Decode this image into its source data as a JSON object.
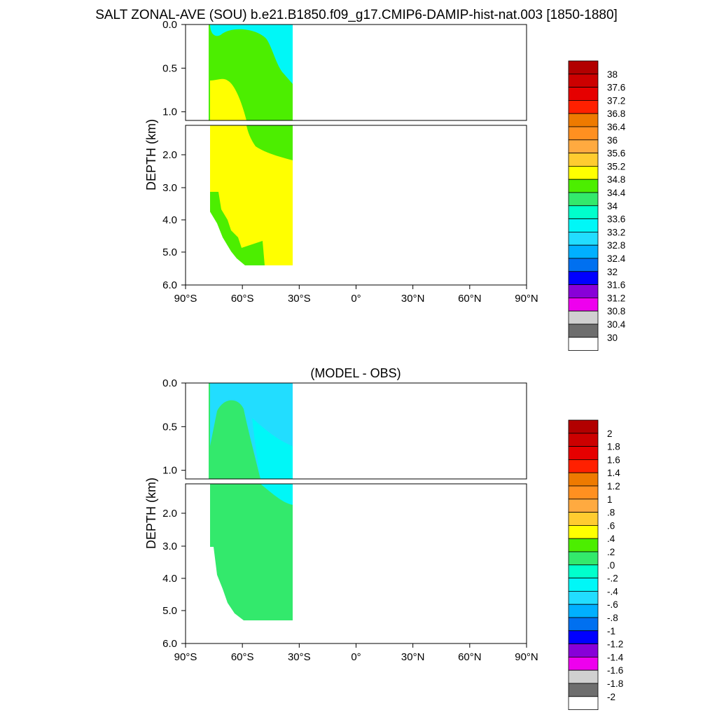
{
  "title": "SALT ZONAL-AVE (SOU) b.e21.B1850.f09_g17.CMIP6-DAMIP-hist-nat.003 [1850-1880]",
  "chart_data": [
    {
      "type": "heatmap",
      "title": "",
      "ylabel": "DEPTH (km)",
      "xlabel": "",
      "x_ticks": [
        "90°S",
        "60°S",
        "30°S",
        "0°",
        "30°N",
        "60°N",
        "90°N"
      ],
      "y_ticks_upper": [
        "0.0",
        "0.5",
        "1.0"
      ],
      "y_ticks_lower": [
        "2.0",
        "3.0",
        "4.0",
        "5.0",
        "6.0"
      ],
      "colorbar_labels": [
        "38",
        "37.6",
        "37.2",
        "36.8",
        "36.4",
        "36",
        "35.6",
        "35.2",
        "34.8",
        "34.4",
        "34",
        "33.6",
        "33.2",
        "32.8",
        "32.4",
        "32",
        "31.6",
        "31.2",
        "30.8",
        "30.4",
        "30"
      ],
      "colors": [
        "#b20000",
        "#cc0000",
        "#e60000",
        "#ff2000",
        "#ee7a00",
        "#ff9020",
        "#ffaa40",
        "#ffcc30",
        "#ffff00",
        "#4cee00",
        "#33e96c",
        "#00ffcc",
        "#00f7f7",
        "#22ddff",
        "#00b0ff",
        "#0070f0",
        "#0000ff",
        "#8800d8",
        "#ee00ee",
        "#d0d0d0",
        "#6e6e6e",
        "#ffffff"
      ],
      "fill_colors": {
        "upper": "#ffff00",
        "mid": "#4cee00",
        "top": "#00f7f7",
        "bottom_patch": "#4cee00"
      }
    },
    {
      "type": "heatmap",
      "title": "(MODEL - OBS)",
      "ylabel": "DEPTH (km)",
      "xlabel": "",
      "x_ticks": [
        "90°S",
        "60°S",
        "30°S",
        "0°",
        "30°N",
        "60°N",
        "90°N"
      ],
      "y_ticks_upper": [
        "0.0",
        "0.5",
        "1.0"
      ],
      "y_ticks_lower": [
        "2.0",
        "3.0",
        "4.0",
        "5.0",
        "6.0"
      ],
      "colorbar_labels": [
        "2",
        "1.8",
        "1.6",
        "1.4",
        "1.2",
        "1",
        ".8",
        ".6",
        ".4",
        ".2",
        ".0",
        "-.2",
        "-.4",
        "-.6",
        "-.8",
        "-1",
        "-1.2",
        "-1.4",
        "-1.6",
        "-1.8",
        "-2"
      ],
      "colors": [
        "#b20000",
        "#cc0000",
        "#e60000",
        "#ff2000",
        "#ee7a00",
        "#ff9020",
        "#ffaa40",
        "#ffcc30",
        "#ffff00",
        "#4cee00",
        "#33e96c",
        "#00ffcc",
        "#00f7f7",
        "#22ddff",
        "#00b0ff",
        "#0070f0",
        "#0000ff",
        "#8800d8",
        "#ee00ee",
        "#d0d0d0",
        "#6e6e6e",
        "#ffffff"
      ],
      "fill_colors": {
        "main": "#33e96c",
        "upper": "#22ddff",
        "mid": "#00f7f7",
        "bottom_patch": "#33e96c"
      }
    }
  ]
}
